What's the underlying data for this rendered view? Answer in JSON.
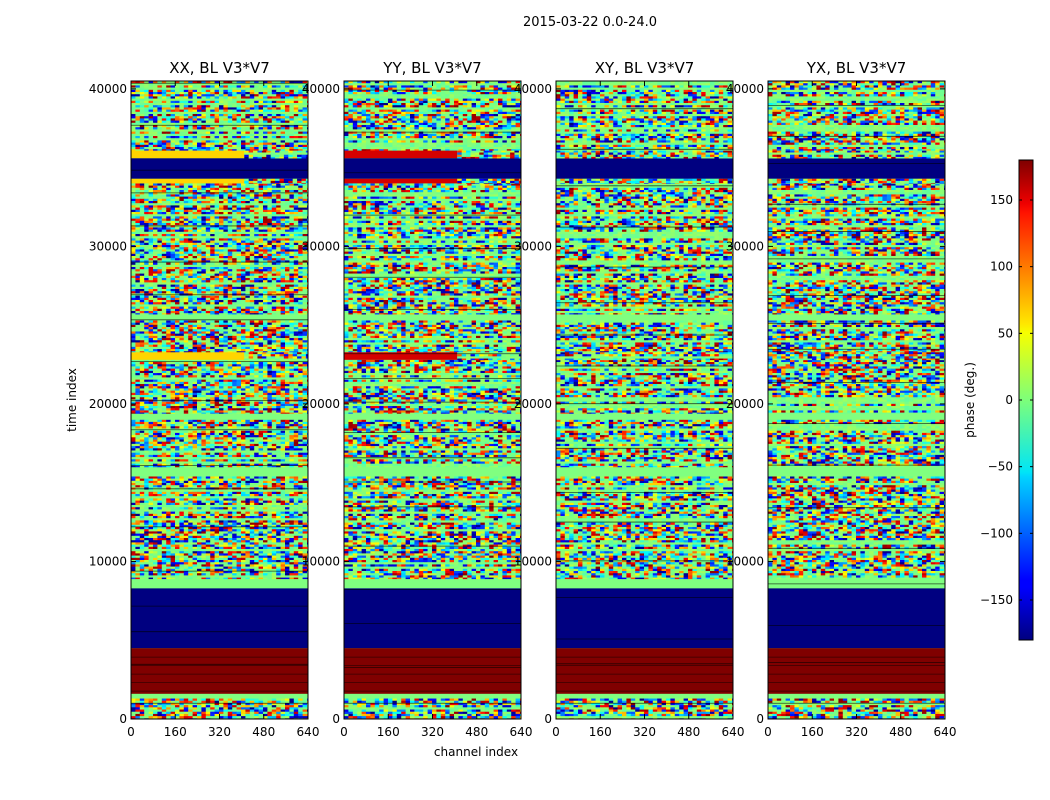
{
  "figure": {
    "suptitle": "2015-03-22 0.0-24.0"
  },
  "chart_data": {
    "type": "heatmap",
    "panels": [
      {
        "title": "XX, BL V3*V7",
        "pol": "XX"
      },
      {
        "title": "YY, BL V3*V7",
        "pol": "YY"
      },
      {
        "title": "XY, BL V3*V7",
        "pol": "XY"
      },
      {
        "title": "YX, BL V3*V7",
        "pol": "YX"
      }
    ],
    "xlabel": "channel index",
    "ylabel": "time index",
    "xlim": [
      0,
      640
    ],
    "ylim": [
      0,
      40500
    ],
    "xticks": [
      "0",
      "160",
      "320",
      "480",
      "640"
    ],
    "xtick_values": [
      0,
      160,
      320,
      480,
      640
    ],
    "yticks": [
      "0",
      "10000",
      "20000",
      "30000",
      "40000"
    ],
    "ytick_values": [
      0,
      10000,
      20000,
      30000,
      40000
    ],
    "colorbar": {
      "label": "phase (deg.)",
      "range": [
        -180,
        180
      ],
      "ticks": [
        "−150",
        "−100",
        "−50",
        "0",
        "50",
        "100",
        "150"
      ],
      "tick_values": [
        -150,
        -100,
        -50,
        0,
        50,
        100,
        150
      ],
      "colormap": "jet"
    },
    "bands": [
      {
        "t0": 0,
        "t1": 1300,
        "kind": "noise"
      },
      {
        "t0": 1300,
        "t1": 1600,
        "kind": "flagged",
        "phase": 0
      },
      {
        "t0": 1600,
        "t1": 4500,
        "kind": "constant",
        "phase": 180
      },
      {
        "t0": 4500,
        "t1": 8300,
        "kind": "constant",
        "phase": -180
      },
      {
        "t0": 8300,
        "t1": 8900,
        "kind": "flagged",
        "phase": 0
      },
      {
        "t0": 8900,
        "t1": 15400,
        "kind": "noise"
      },
      {
        "t0": 15400,
        "t1": 16000,
        "kind": "flagged",
        "phase": 0
      },
      {
        "t0": 16000,
        "t1": 19000,
        "kind": "noise"
      },
      {
        "t0": 19000,
        "t1": 19400,
        "kind": "flagged",
        "phase": 0
      },
      {
        "t0": 19400,
        "t1": 22800,
        "kind": "noise"
      },
      {
        "t0": 22800,
        "t1": 23300,
        "kind": "stripe",
        "XX_phase": 60,
        "YY_phase": 150
      },
      {
        "t0": 23300,
        "t1": 25300,
        "kind": "noise"
      },
      {
        "t0": 25300,
        "t1": 25700,
        "kind": "flagged",
        "phase": 0
      },
      {
        "t0": 25700,
        "t1": 34000,
        "kind": "noise"
      },
      {
        "t0": 34000,
        "t1": 34300,
        "kind": "stripe",
        "XX_phase": 60,
        "YY_phase": 150
      },
      {
        "t0": 34300,
        "t1": 35600,
        "kind": "constant",
        "phase": -180
      },
      {
        "t0": 35600,
        "t1": 36100,
        "kind": "stripe",
        "XX_phase": 60,
        "YY_phase": 150
      },
      {
        "t0": 36100,
        "t1": 40500,
        "kind": "noise"
      }
    ]
  }
}
